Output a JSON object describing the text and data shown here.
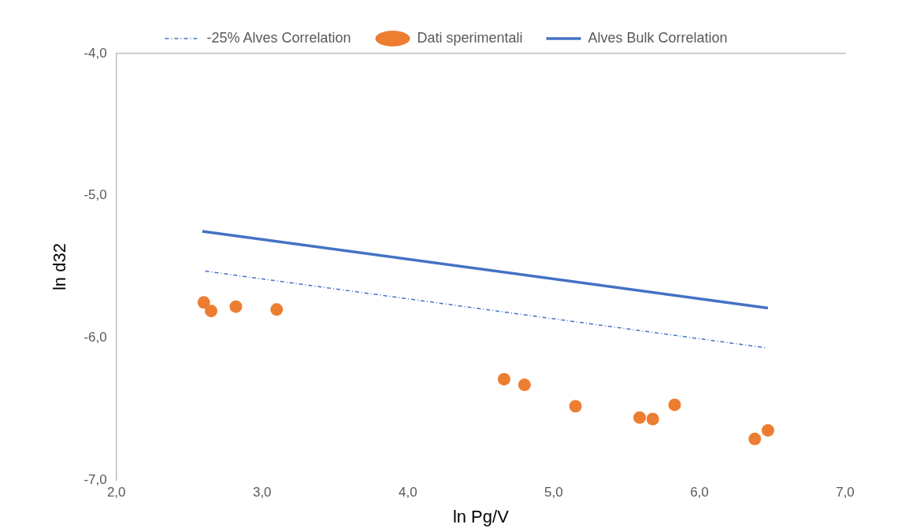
{
  "chart_data": {
    "type": "scatter",
    "xlabel": "ln Pg/V",
    "ylabel": "ln d32",
    "xlim": [
      2,
      7
    ],
    "ylim": [
      -7,
      -4
    ],
    "xticks": [
      {
        "value": 2,
        "label": "2,0"
      },
      {
        "value": 3,
        "label": "3,0"
      },
      {
        "value": 4,
        "label": "4,0"
      },
      {
        "value": 5,
        "label": "5,0"
      },
      {
        "value": 6,
        "label": "6,0"
      },
      {
        "value": 7,
        "label": "7,0"
      }
    ],
    "yticks": [
      {
        "value": -7,
        "label": "-7,0"
      },
      {
        "value": -6,
        "label": "-6,0"
      },
      {
        "value": -5,
        "label": "-5,0"
      },
      {
        "value": -4,
        "label": "-4,0"
      }
    ],
    "legend": "top",
    "grid": false,
    "series": [
      {
        "name": "-25% Alves Correlation",
        "type": "line",
        "line_style": "dashed",
        "marker": "none",
        "color": "#4472c4",
        "x": [
          2.61,
          6.46
        ],
        "values": [
          -5.53,
          -6.07
        ]
      },
      {
        "name": "Dati sperimentali",
        "type": "scatter",
        "marker": "circle",
        "color": "#ed7d31",
        "x": [
          2.6,
          2.65,
          2.82,
          3.1,
          4.66,
          4.8,
          5.15,
          5.59,
          5.68,
          5.83,
          6.38,
          6.47
        ],
        "values": [
          -5.75,
          -5.81,
          -5.78,
          -5.8,
          -6.29,
          -6.33,
          -6.48,
          -6.56,
          -6.57,
          -6.47,
          -6.71,
          -6.65
        ]
      },
      {
        "name": "Alves Bulk Correlation",
        "type": "line",
        "line_style": "solid",
        "marker": "none",
        "color": "#4472c4",
        "x": [
          2.59,
          6.47
        ],
        "values": [
          -5.25,
          -5.79
        ]
      }
    ]
  }
}
